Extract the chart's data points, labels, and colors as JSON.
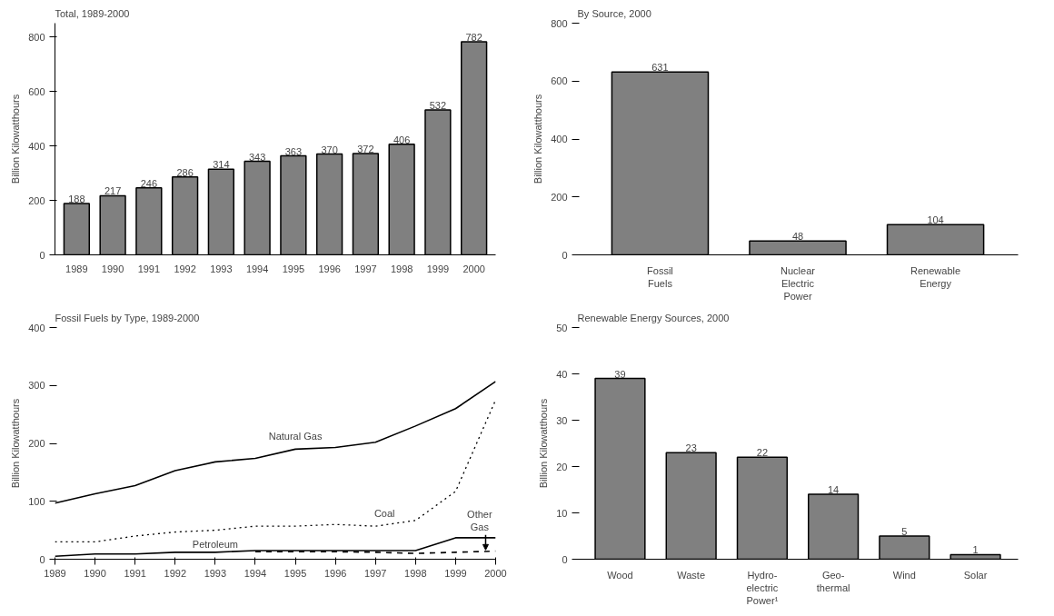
{
  "chart_data": [
    {
      "type": "bar",
      "title": "Total, 1989-2000",
      "ylabel": "Billion Kilowatthours",
      "categories": [
        "1989",
        "1990",
        "1991",
        "1992",
        "1993",
        "1994",
        "1995",
        "1996",
        "1997",
        "1998",
        "1999",
        "2000"
      ],
      "values": [
        188,
        217,
        246,
        286,
        314,
        343,
        363,
        370,
        372,
        406,
        532,
        782
      ],
      "color": "#808080",
      "ylim": [
        0,
        850
      ],
      "yticks": [
        0,
        200,
        400,
        600,
        800
      ],
      "data_labels": true,
      "grid": false
    },
    {
      "type": "bar",
      "title": "By Source, 2000",
      "ylabel": "Billion Kilowatthours",
      "categories": [
        "Fossil\nFuels",
        "Nuclear\nElectric\nPower",
        "Renewable\nEnergy"
      ],
      "values": [
        631,
        48,
        104
      ],
      "color": "#808080",
      "ylim": [
        0,
        800
      ],
      "yticks": [
        0,
        200,
        400,
        600,
        800
      ],
      "data_labels": true,
      "grid": false
    },
    {
      "type": "line",
      "title": "Fossil Fuels by Type, 1989-2000",
      "ylabel": "Billion Kilowatthours",
      "x": [
        1989,
        1990,
        1991,
        1992,
        1993,
        1994,
        1995,
        1996,
        1997,
        1998,
        1999,
        2000
      ],
      "xlim": [
        1989,
        2000
      ],
      "xticks": [
        1989,
        1990,
        1991,
        1992,
        1993,
        1994,
        1995,
        1996,
        1997,
        1998,
        1999,
        2000
      ],
      "ylim": [
        0,
        400
      ],
      "yticks": [
        0,
        100,
        200,
        300,
        400
      ],
      "grid": false,
      "marker": "none",
      "series": [
        {
          "name": "Natural Gas",
          "color": "#000000",
          "line_style": "solid",
          "values": [
            97,
            113,
            127,
            153,
            168,
            174,
            190,
            193,
            202,
            230,
            260,
            307
          ]
        },
        {
          "name": "Coal",
          "color": "#000000",
          "line_style": "dotted",
          "values": [
            30,
            30,
            40,
            47,
            50,
            57,
            57,
            60,
            57,
            67,
            117,
            275
          ]
        },
        {
          "name": "Petroleum",
          "color": "#000000",
          "line_style": "solid",
          "values": [
            5,
            9,
            9,
            12,
            12,
            15,
            15,
            15,
            15,
            15,
            37,
            37
          ]
        },
        {
          "name": "Other Gas",
          "color": "#000000",
          "line_style": "dashed",
          "values": [
            null,
            null,
            null,
            null,
            null,
            13,
            13,
            13,
            12,
            10,
            12,
            14
          ]
        }
      ]
    },
    {
      "type": "bar",
      "title": "Renewable Energy Sources, 2000",
      "ylabel": "Billion Kilowatthours",
      "categories": [
        "Wood",
        "Waste",
        "Hydro-\nelectric\nPower¹",
        "Geo-\nthermal",
        "Wind",
        "Solar"
      ],
      "values": [
        39,
        23,
        22,
        14,
        5,
        1
      ],
      "color": "#808080",
      "ylim": [
        0,
        50
      ],
      "yticks": [
        0,
        10,
        20,
        30,
        40,
        50
      ],
      "data_labels": true,
      "grid": false
    }
  ]
}
